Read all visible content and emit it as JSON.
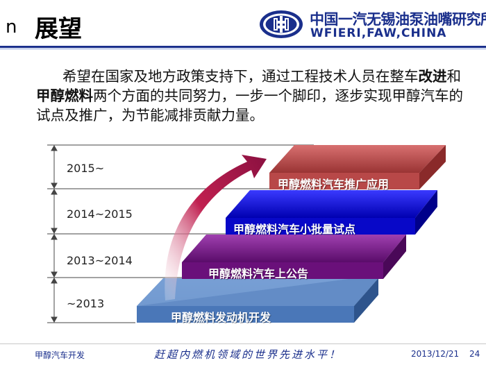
{
  "header": {
    "bullet": "n",
    "title": "展望",
    "logo_cn": "中国一汽无锡油泵油嘴研究所",
    "logo_en": "WFIERI,FAW,CHINA",
    "logo_icon": "faw-emblem-icon",
    "colors": {
      "brand": "#1a2f8c"
    }
  },
  "paragraph": {
    "part1": "希望在国家及地方政策支持下，通过工程技术人员在整车",
    "bold1": "改进",
    "part2": "和",
    "bold2": "甲醇燃料",
    "part3": "两个方面的共同努力，一步一个脚印，逐步实现甲醇汽车的试点及推广，为节能减排贡献力量。"
  },
  "roadmap": {
    "periods": [
      "2015~",
      "2014~2015",
      "2013~2014",
      "~2013"
    ],
    "steps": [
      {
        "label": "甲醇燃料汽车推广应用",
        "color": "#c0504d"
      },
      {
        "label": "甲醇燃料汽车小批量试点",
        "color": "#1010e0"
      },
      {
        "label": "甲醇燃料汽车上公告",
        "color": "#7a1a8a"
      },
      {
        "label": "甲醇燃料发动机开发",
        "color": "#5b87c5"
      }
    ],
    "arrow_color": "#9c1a4a"
  },
  "footer": {
    "left": "甲醇汽车开发",
    "slogan": "赶超内燃机领域的世界先进水平！",
    "date": "2013/12/21",
    "page": "24"
  }
}
